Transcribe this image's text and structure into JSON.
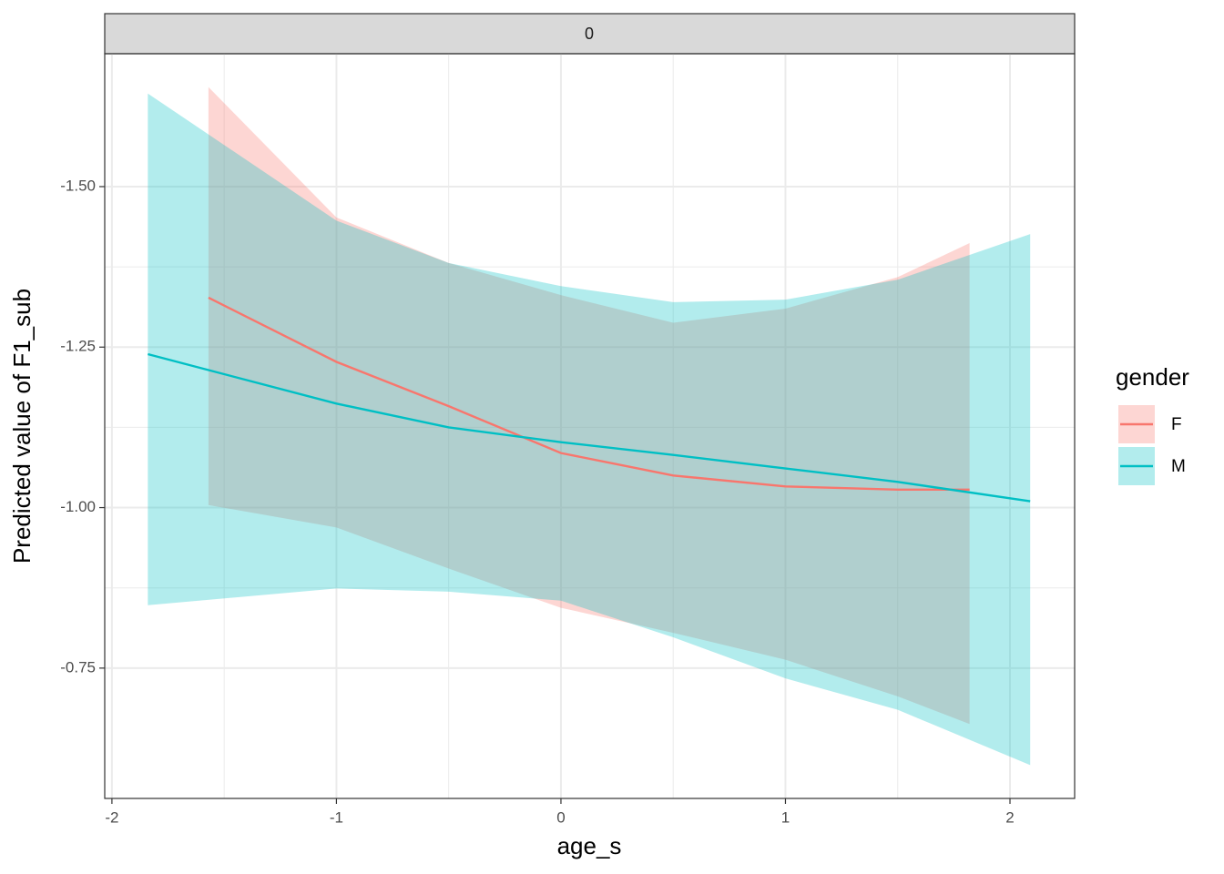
{
  "chart_data": {
    "type": "line",
    "facet_label": "0",
    "x_label": "age_s",
    "y_label": "Predicted value of F1_sub",
    "xlim": [
      -2.032,
      2.288
    ],
    "xticks": [
      -2,
      -1,
      0,
      1,
      2
    ],
    "ylim": [
      -1.707,
      -0.547
    ],
    "y_reversed": true,
    "yticks": [
      {
        "value": -1.5,
        "label": "-1.50"
      },
      {
        "value": -1.25,
        "label": "-1.25"
      },
      {
        "value": -1.0,
        "label": "-1.00"
      },
      {
        "value": -0.75,
        "label": "-0.75"
      }
    ],
    "grid": true,
    "minor_grid": true,
    "legend_title": "gender",
    "legend_position": "right",
    "series": [
      {
        "name": "F",
        "color": "#F8766D",
        "x": [
          -1.57,
          -1,
          -0.5,
          0,
          0.5,
          1,
          1.5,
          1.82
        ],
        "values": [
          -1.327,
          -1.227,
          -1.158,
          -1.085,
          -1.05,
          -1.033,
          -1.028,
          -1.028
        ],
        "lower": [
          -1.655,
          -1.452,
          -1.381,
          -1.331,
          -1.288,
          -1.31,
          -1.359,
          -1.412
        ],
        "upper": [
          -1.004,
          -0.969,
          -0.905,
          -0.844,
          -0.805,
          -0.763,
          -0.706,
          -0.663
        ]
      },
      {
        "name": "M",
        "color": "#00BFC4",
        "x": [
          -1.84,
          -1,
          -0.5,
          0,
          0.5,
          1,
          1.5,
          2.09
        ],
        "values": [
          -1.239,
          -1.162,
          -1.125,
          -1.102,
          -1.082,
          -1.061,
          -1.04,
          -1.01
        ],
        "lower": [
          -1.645,
          -1.447,
          -1.381,
          -1.345,
          -1.32,
          -1.324,
          -1.355,
          -1.426
        ],
        "upper": [
          -0.848,
          -0.874,
          -0.869,
          -0.855,
          -0.798,
          -0.734,
          -0.685,
          -0.599
        ]
      }
    ]
  }
}
